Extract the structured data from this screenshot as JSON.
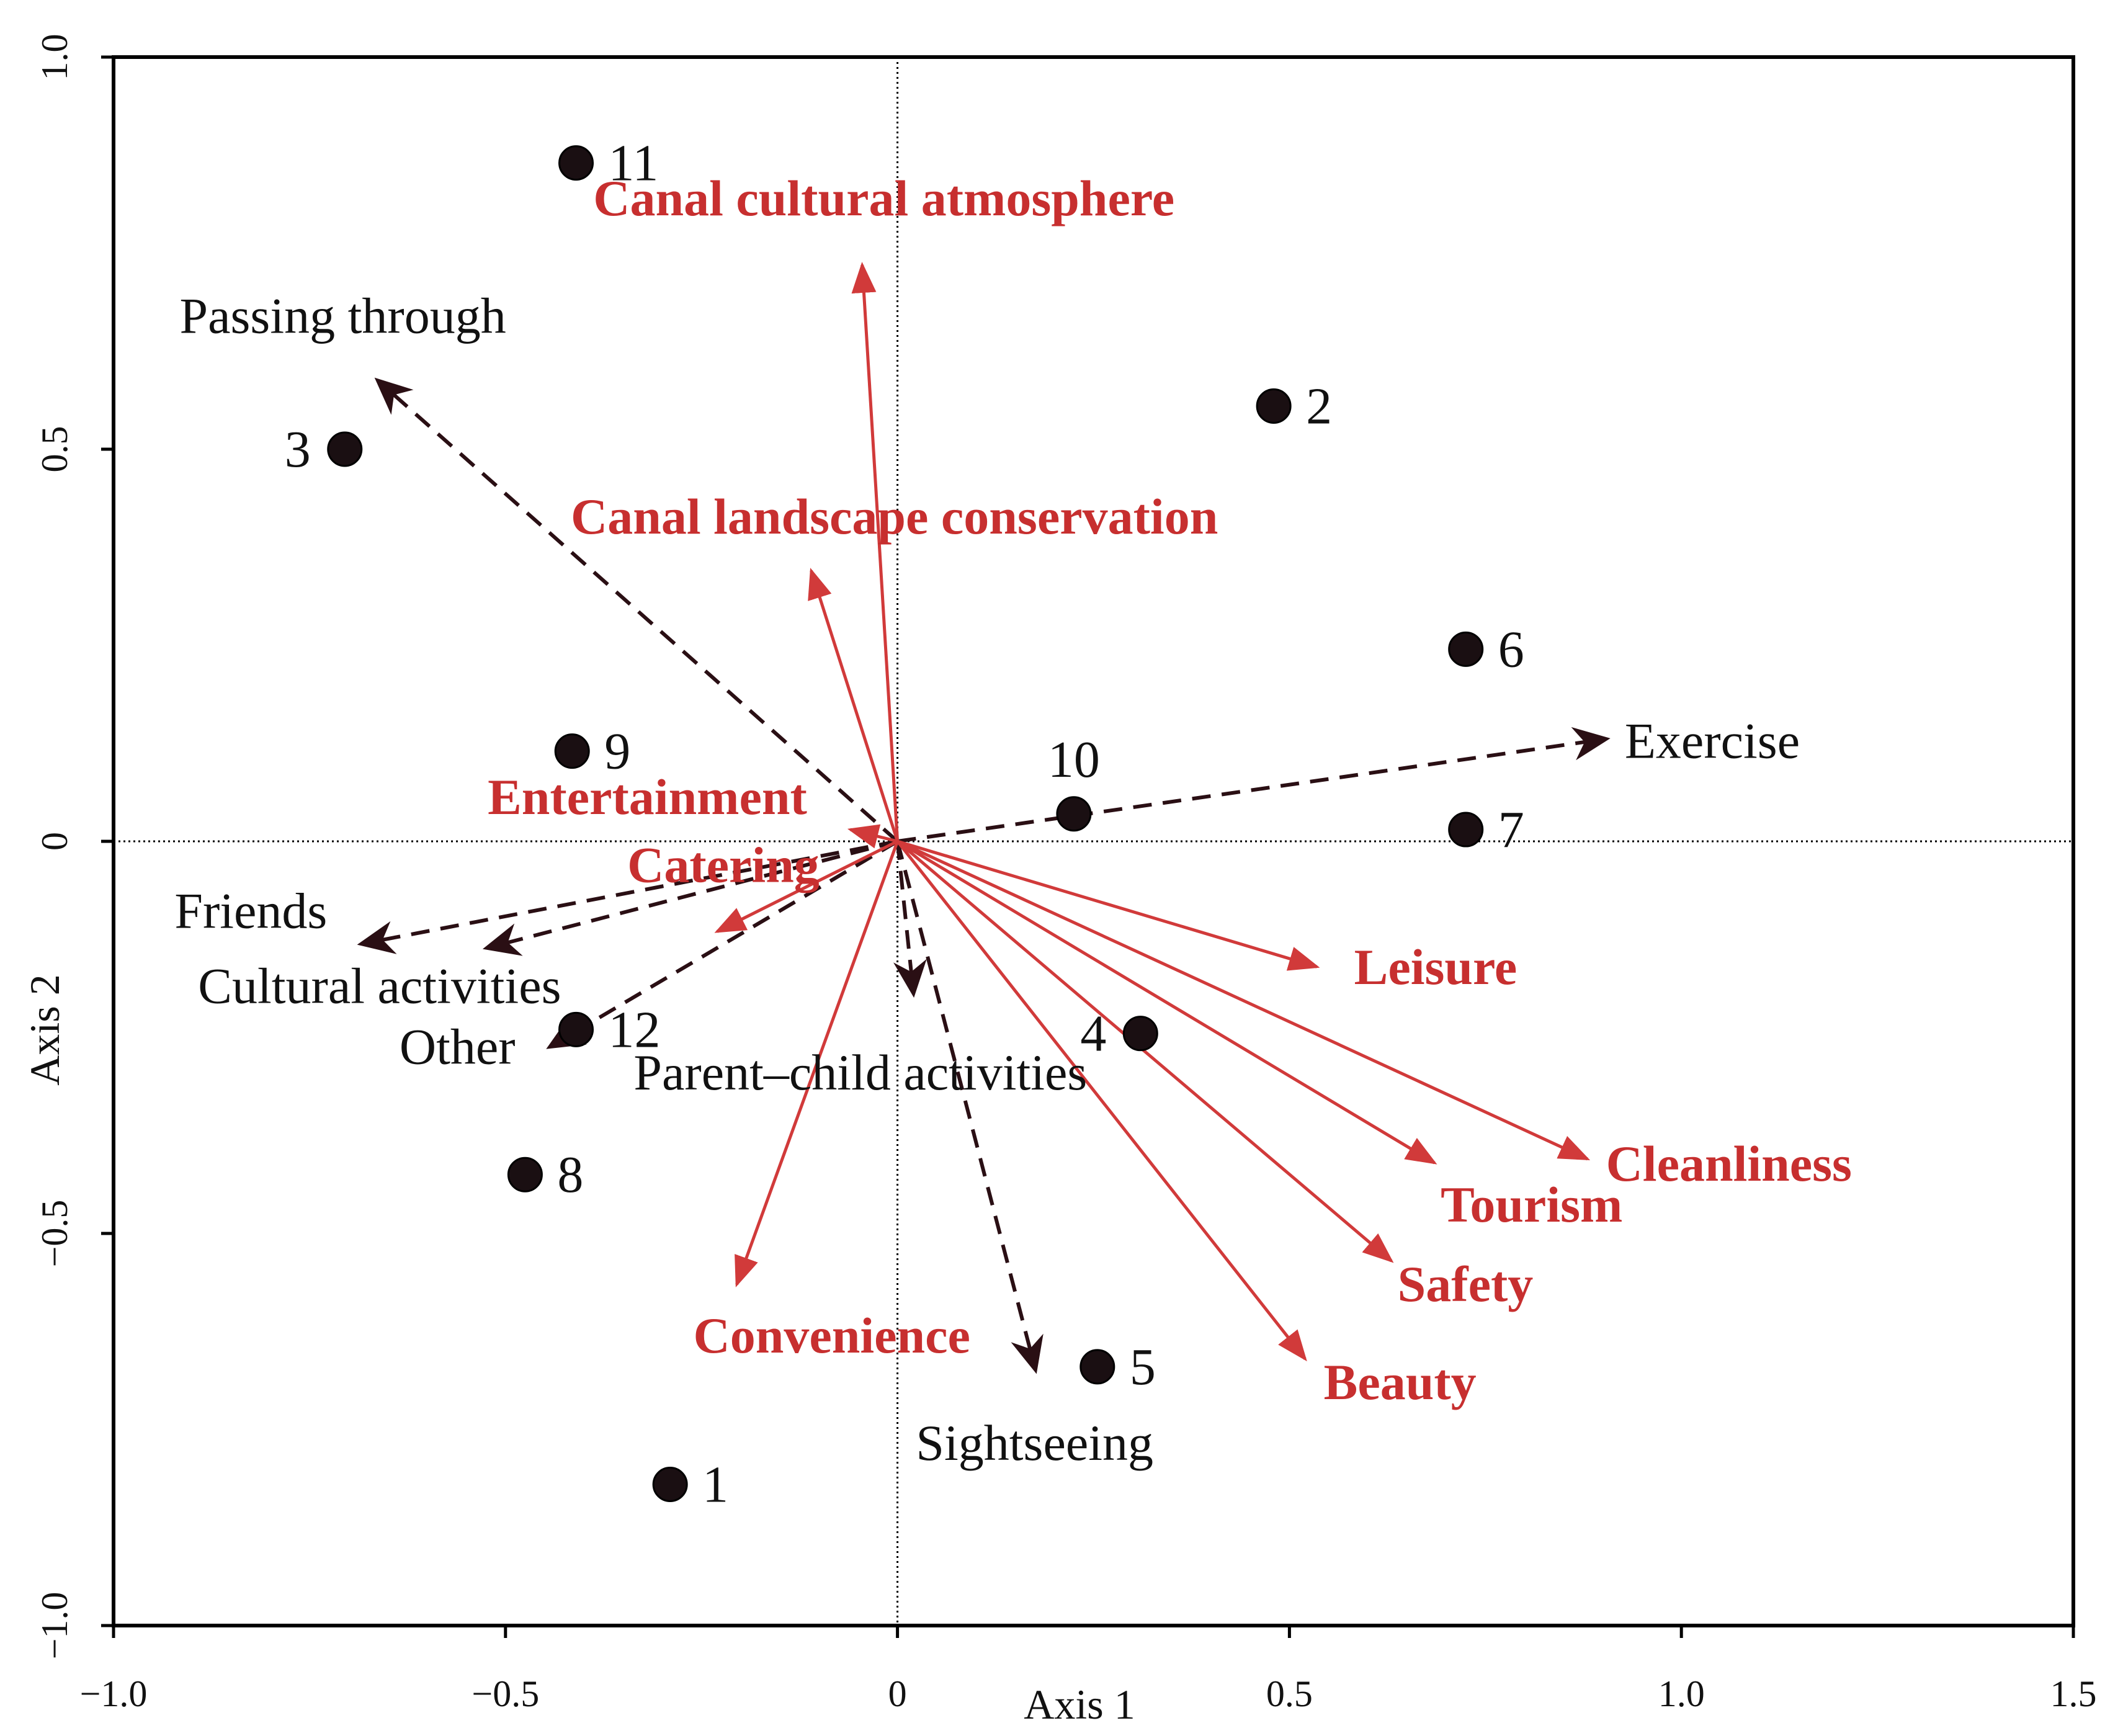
{
  "chart_data": {
    "type": "scatter",
    "xlabel": "Axis 1",
    "ylabel": "Axis 2",
    "xlim": [
      -1.0,
      1.5
    ],
    "ylim": [
      -1.0,
      1.0
    ],
    "x_ticks": [
      -1.0,
      -0.5,
      0,
      0.5,
      1.0,
      1.5
    ],
    "x_tick_labels": [
      "−1.0",
      "−0.5",
      "0",
      "0.5",
      "1.0",
      "1.5"
    ],
    "y_ticks": [
      -1.0,
      -0.5,
      0,
      0.5,
      1.0
    ],
    "y_tick_labels": [
      "−1.0",
      "−0.5",
      "0",
      "0.5",
      "1.0"
    ],
    "reference_lines": [
      {
        "axis": "x",
        "value": 0
      },
      {
        "axis": "y",
        "value": 0
      }
    ],
    "colors": {
      "points": "#1a0f12",
      "env_vectors": "#d13a3a",
      "act_vectors": "#2a0f14",
      "env_text": "#c72f2f"
    },
    "sites": [
      {
        "label": "1",
        "x": -0.29,
        "y": -0.82
      },
      {
        "label": "2",
        "x": 0.48,
        "y": 0.555
      },
      {
        "label": "3",
        "x": -0.705,
        "y": 0.5
      },
      {
        "label": "4",
        "x": 0.31,
        "y": -0.245
      },
      {
        "label": "5",
        "x": 0.255,
        "y": -0.67
      },
      {
        "label": "6",
        "x": 0.725,
        "y": 0.245
      },
      {
        "label": "7",
        "x": 0.725,
        "y": 0.015
      },
      {
        "label": "8",
        "x": -0.475,
        "y": -0.425
      },
      {
        "label": "9",
        "x": -0.415,
        "y": 0.115
      },
      {
        "label": "10",
        "x": 0.225,
        "y": 0.035
      },
      {
        "label": "11",
        "x": -0.41,
        "y": 0.865
      },
      {
        "label": "12",
        "x": -0.41,
        "y": -0.24
      }
    ],
    "environment_vectors": [
      {
        "name": "Canal cultural atmosphere",
        "x": -0.045,
        "y": 0.735
      },
      {
        "name": "Canal landscape conservation",
        "x": -0.11,
        "y": 0.345
      },
      {
        "name": "Entertainment",
        "x": -0.06,
        "y": 0.015
      },
      {
        "name": "Catering",
        "x": -0.23,
        "y": -0.115
      },
      {
        "name": "Leisure",
        "x": 0.535,
        "y": -0.16
      },
      {
        "name": "Cleanliness",
        "x": 0.88,
        "y": -0.405
      },
      {
        "name": "Tourism",
        "x": 0.685,
        "y": -0.41
      },
      {
        "name": "Safety",
        "x": 0.63,
        "y": -0.535
      },
      {
        "name": "Beauty",
        "x": 0.52,
        "y": -0.66
      },
      {
        "name": "Convenience",
        "x": -0.205,
        "y": -0.565
      }
    ],
    "activity_vectors": [
      {
        "name": "Passing through",
        "x": -0.66,
        "y": 0.585
      },
      {
        "name": "Exercise",
        "x": 0.9,
        "y": 0.13
      },
      {
        "name": "Friends",
        "x": -0.68,
        "y": -0.13
      },
      {
        "name": "Cultural activities",
        "x": -0.52,
        "y": -0.135
      },
      {
        "name": "Other",
        "x": -0.44,
        "y": -0.26
      },
      {
        "name": "Parent–child activities",
        "x": 0.02,
        "y": -0.19
      },
      {
        "name": "Sightseeing",
        "x": 0.175,
        "y": -0.67
      }
    ]
  }
}
